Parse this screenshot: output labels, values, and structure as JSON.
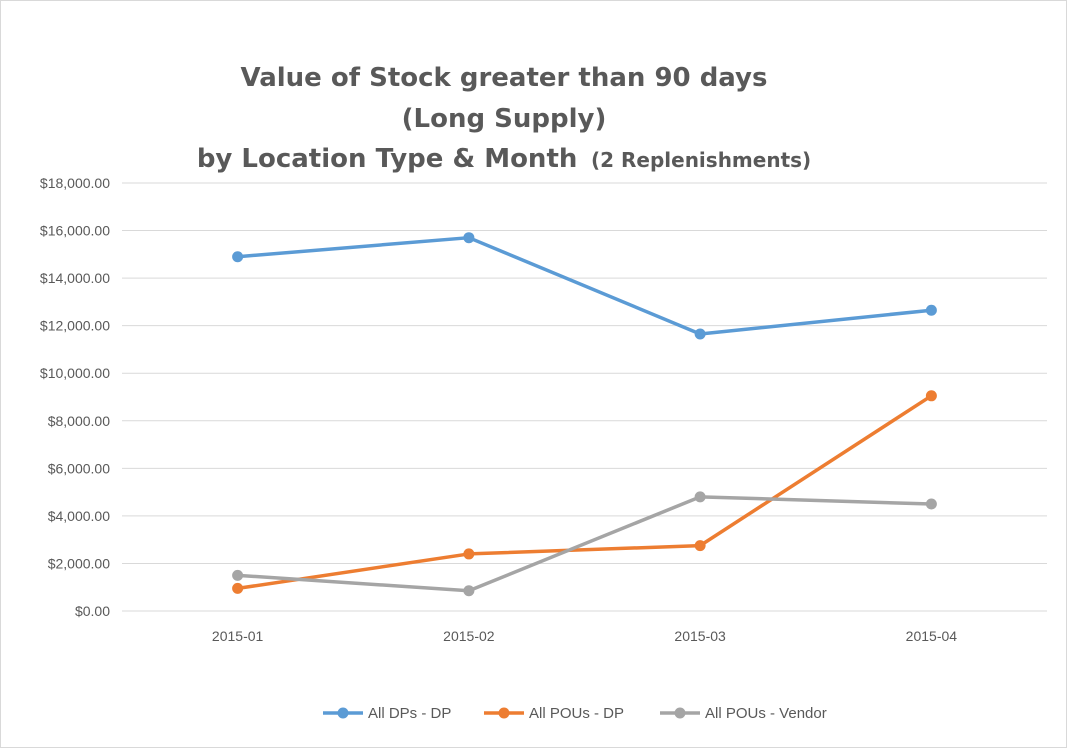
{
  "chart_data": {
    "type": "line",
    "title": {
      "line1": "Value of Stock greater than 90 days",
      "line2": "(Long Supply)",
      "line3_main": "by Location Type & Month",
      "line3_sub": "(2 Replenishments)"
    },
    "categories": [
      "2015-01",
      "2015-02",
      "2015-03",
      "2015-04"
    ],
    "ylim": [
      0,
      18000
    ],
    "y_ticks": [
      {
        "value": 0,
        "label": "$0.00"
      },
      {
        "value": 2000,
        "label": "$2,000.00"
      },
      {
        "value": 4000,
        "label": "$4,000.00"
      },
      {
        "value": 6000,
        "label": "$6,000.00"
      },
      {
        "value": 8000,
        "label": "$8,000.00"
      },
      {
        "value": 10000,
        "label": "$10,000.00"
      },
      {
        "value": 12000,
        "label": "$12,000.00"
      },
      {
        "value": 14000,
        "label": "$14,000.00"
      },
      {
        "value": 16000,
        "label": "$16,000.00"
      },
      {
        "value": 18000,
        "label": "$18,000.00"
      }
    ],
    "grid": true,
    "legend_position": "bottom",
    "series": [
      {
        "name": "All DPs - DP",
        "color": "#5b9bd5",
        "values": [
          14900,
          15700,
          11650,
          12650
        ]
      },
      {
        "name": "All POUs - DP",
        "color": "#ed7d31",
        "values": [
          950,
          2400,
          2750,
          9050
        ]
      },
      {
        "name": "All POUs - Vendor",
        "color": "#a5a5a5",
        "values": [
          1500,
          850,
          4800,
          4500
        ]
      }
    ]
  }
}
